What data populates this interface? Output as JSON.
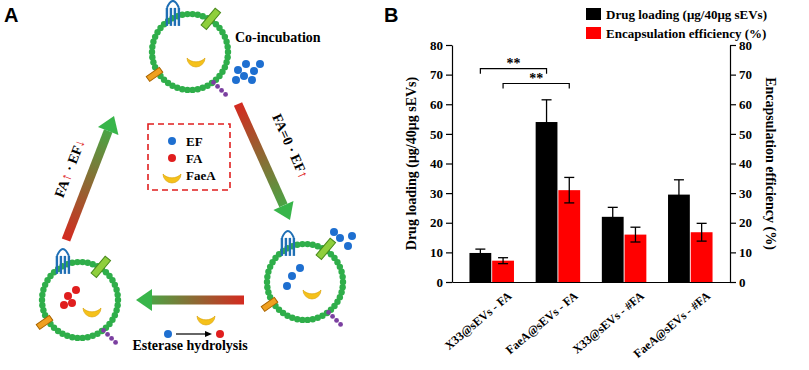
{
  "figure": {
    "panel_labels": [
      "A",
      "B"
    ]
  },
  "diagram": {
    "co_incubation": "Co-incubation",
    "left_arrow_label": "FA↑ · EF↓",
    "right_arrow_label": "FA=0 · EF↑",
    "bottom_arrow_label": "Esterase hydrolysis",
    "legend": [
      "EF",
      "FA",
      "FaeA"
    ]
  },
  "chart_data": {
    "type": "bar",
    "categories": [
      "X33@sEVs - FA",
      "FaeA@sEVs - FA",
      "X33@sEVs - #FA",
      "FaeA@sEVs - #FA"
    ],
    "series": [
      {
        "name": "Drug loading (μg/40μg sEVs)",
        "color": "#000000",
        "values": [
          9.8,
          54,
          22,
          29.5
        ],
        "errors": [
          1.3,
          7.5,
          3.2,
          5
        ]
      },
      {
        "name": "Encapsulation efficiency (%)",
        "color": "#ff0000",
        "axis": "y2",
        "values": [
          7.2,
          31,
          16,
          16.8
        ],
        "errors": [
          1,
          4.3,
          2.5,
          3
        ]
      }
    ],
    "ylabel": "Drug loading (μg/40μg sEVs)",
    "y2label": "Encapsulation efficiency (%)",
    "ylim": [
      0,
      80
    ],
    "yticks": [
      0,
      10,
      20,
      30,
      40,
      50,
      60,
      70,
      80
    ],
    "y2lim": [
      0,
      80
    ],
    "y2ticks": [
      0,
      10,
      20,
      30,
      40,
      50,
      60,
      70,
      80
    ],
    "legend": "top-right",
    "annotations": [
      {
        "text": "**",
        "from": 0,
        "to": 1,
        "series": 0,
        "y": 72
      },
      {
        "text": "**",
        "from": 0,
        "to": 1,
        "series": 1,
        "y": 67
      }
    ]
  }
}
